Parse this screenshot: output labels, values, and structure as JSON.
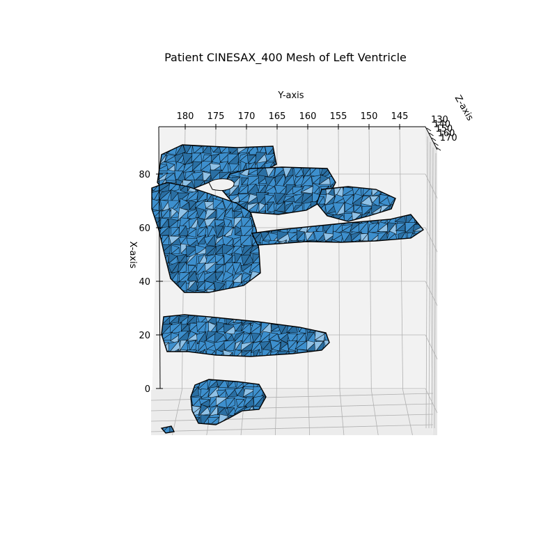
{
  "chart_data": {
    "type": "mesh3d",
    "title": "Patient CINESAX_400 Mesh of Left Ventricle",
    "xlabel": "X-axis",
    "ylabel": "Y-axis",
    "zlabel": "Z-axis",
    "x_ticks": [
      0,
      20,
      40,
      60,
      80
    ],
    "y_ticks": [
      180,
      175,
      170,
      165,
      160,
      155,
      150,
      145
    ],
    "z_ticks": [
      130,
      140,
      150,
      160,
      170
    ],
    "view": "top-down along Z, Y-axis reversed across top, X-axis vertical on left",
    "grid": true,
    "colors": {
      "mesh_face": "#3d8fcd",
      "mesh_face_dark": "#2a6fa3",
      "mesh_face_light": "#8fc1e6",
      "mesh_edge": "#000000",
      "pane": "#f2f2f2",
      "grid": "#b0b0b0"
    }
  }
}
